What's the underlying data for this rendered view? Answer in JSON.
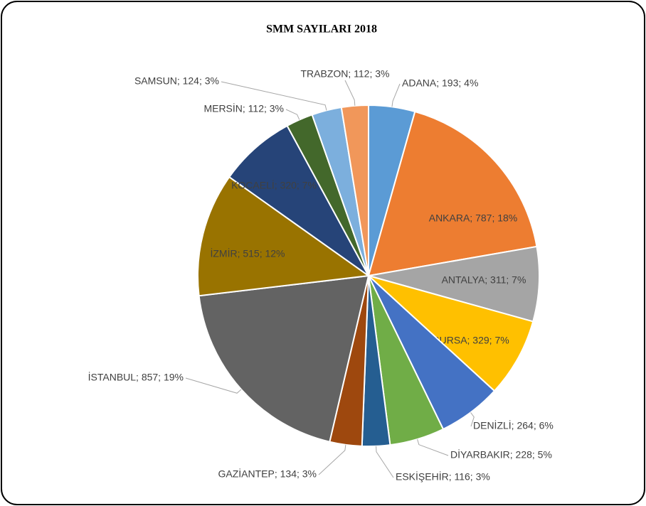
{
  "chart_data": {
    "type": "pie",
    "title": "SMM SAYILARI 2018",
    "values": [
      193,
      787,
      311,
      329,
      264,
      228,
      116,
      134,
      857,
      515,
      320,
      112,
      124,
      112
    ],
    "value_labels": [
      "ADANA; 193; 4%",
      "ANKARA; 787; 18%",
      "ANTALYA; 311; 7%",
      "BURSA; 329; 7%",
      "DENİZLİ; 264; 6%",
      "DİYARBAKIR; 228; 5%",
      "ESKİŞEHİR; 116; 3%",
      "GAZİANTEP; 134; 3%",
      "İSTANBUL; 857; 19%",
      "İZMİR; 515; 12%",
      "KOCAELİ; 320; 7%",
      "MERSİN; 112; 3%",
      "SAMSUN; 124; 3%",
      "TRABZON; 112; 3%"
    ],
    "colors": [
      "#5b9bd5",
      "#ed7d31",
      "#a5a5a5",
      "#ffc000",
      "#4472c4",
      "#70ad47",
      "#255e91",
      "#9e480e",
      "#636363",
      "#997300",
      "#264478",
      "#43682b",
      "#7cafdd",
      "#f1975a"
    ]
  }
}
